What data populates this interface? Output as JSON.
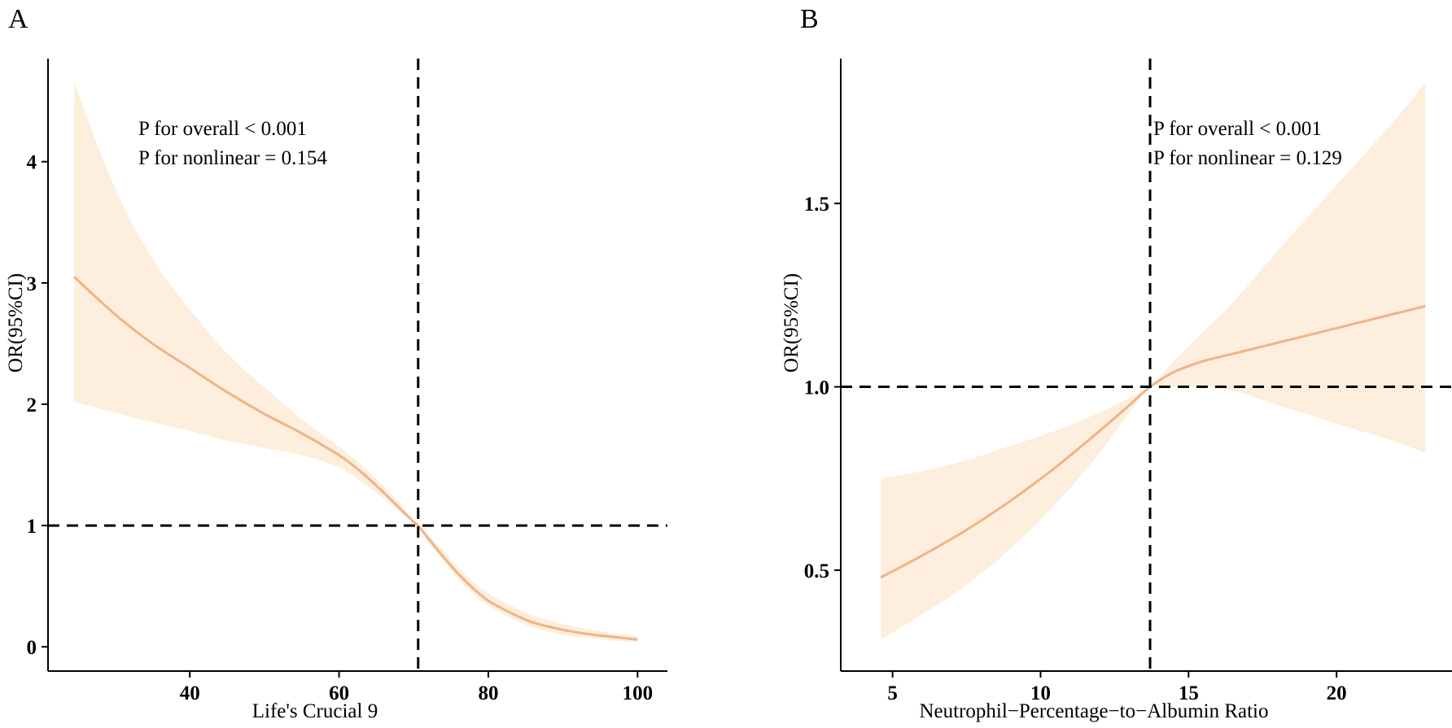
{
  "colors": {
    "band": "#fdeedd",
    "line": "#f0b387",
    "axis": "#000000"
  },
  "chart_data": [
    {
      "type": "line",
      "panel_label": "A",
      "xlabel": "Life's Crucial 9",
      "ylabel": "OR(95%CI)",
      "xlim": [
        21,
        104
      ],
      "ylim": [
        -0.2,
        4.85
      ],
      "xticks": [
        40,
        60,
        80,
        100
      ],
      "yticks": [
        0,
        1,
        2,
        3,
        4
      ],
      "ref_x": 70.6,
      "ref_y": 1,
      "annotations": [
        "P for overall < 0.001",
        "P for nonlinear = 0.154"
      ],
      "series": [
        {
          "name": "OR",
          "x": [
            24.5,
            30,
            35,
            40,
            45,
            50,
            55,
            60,
            63,
            66,
            68,
            70,
            70.6,
            72,
            74,
            76,
            78,
            80,
            83,
            86,
            90,
            94,
            97,
            100
          ],
          "y": [
            3.05,
            2.74,
            2.5,
            2.3,
            2.1,
            1.92,
            1.76,
            1.58,
            1.44,
            1.27,
            1.15,
            1.03,
            1.0,
            0.89,
            0.74,
            0.6,
            0.48,
            0.38,
            0.28,
            0.2,
            0.14,
            0.1,
            0.08,
            0.06
          ]
        },
        {
          "name": "lower",
          "x": [
            24.5,
            30,
            35,
            40,
            45,
            50,
            55,
            60,
            63,
            66,
            68,
            70,
            70.6,
            72,
            74,
            76,
            78,
            80,
            83,
            86,
            90,
            94,
            97,
            100
          ],
          "y": [
            2.02,
            1.93,
            1.85,
            1.78,
            1.7,
            1.64,
            1.58,
            1.48,
            1.36,
            1.22,
            1.12,
            1.02,
            0.99,
            0.86,
            0.71,
            0.56,
            0.44,
            0.34,
            0.24,
            0.16,
            0.1,
            0.07,
            0.05,
            0.04
          ]
        },
        {
          "name": "upper",
          "x": [
            24.5,
            30,
            35,
            40,
            45,
            50,
            55,
            60,
            63,
            66,
            68,
            70,
            70.6,
            72,
            74,
            76,
            78,
            80,
            83,
            86,
            90,
            94,
            97,
            100
          ],
          "y": [
            4.65,
            3.78,
            3.2,
            2.78,
            2.42,
            2.14,
            1.88,
            1.65,
            1.5,
            1.32,
            1.19,
            1.04,
            1.01,
            0.92,
            0.79,
            0.65,
            0.53,
            0.44,
            0.34,
            0.26,
            0.19,
            0.14,
            0.11,
            0.09
          ]
        }
      ]
    },
    {
      "type": "line",
      "panel_label": "B",
      "xlabel": "Neutrophil−Percentage−to−Albumin Ratio",
      "ylabel": "OR(95%CI)",
      "xlim": [
        3.25,
        23.9
      ],
      "ylim": [
        0.225,
        1.895
      ],
      "xticks": [
        5,
        10,
        15,
        20
      ],
      "yticks": [
        0.5,
        1.0,
        1.5
      ],
      "ytick_labels": [
        "0.5",
        "1.0",
        "1.5"
      ],
      "ref_x": 13.7,
      "ref_y": 1.0,
      "annotations": [
        "P for overall < 0.001",
        "P for nonlinear = 0.129"
      ],
      "series": [
        {
          "name": "OR",
          "x": [
            4.6,
            6,
            7.5,
            9,
            10.5,
            12,
            13,
            13.7,
            14.5,
            15.5,
            16.5,
            18,
            20,
            22,
            23
          ],
          "y": [
            0.48,
            0.54,
            0.61,
            0.69,
            0.78,
            0.88,
            0.95,
            1.0,
            1.04,
            1.07,
            1.09,
            1.12,
            1.16,
            1.2,
            1.22
          ]
        },
        {
          "name": "lower",
          "x": [
            4.6,
            6,
            7.5,
            9,
            10.5,
            12,
            13,
            13.7,
            14.5,
            15.5,
            16.5,
            18,
            20,
            22,
            23
          ],
          "y": [
            0.31,
            0.38,
            0.46,
            0.56,
            0.68,
            0.82,
            0.93,
            1.0,
            1.0,
            1.0,
            0.99,
            0.95,
            0.9,
            0.85,
            0.82
          ]
        },
        {
          "name": "upper",
          "x": [
            4.6,
            6,
            7.5,
            9,
            10.5,
            12,
            13,
            13.7,
            14.5,
            15.5,
            16.5,
            18,
            20,
            22,
            23
          ],
          "y": [
            0.75,
            0.77,
            0.8,
            0.84,
            0.88,
            0.93,
            0.97,
            1.0,
            1.07,
            1.15,
            1.23,
            1.37,
            1.55,
            1.73,
            1.83
          ]
        }
      ]
    }
  ]
}
